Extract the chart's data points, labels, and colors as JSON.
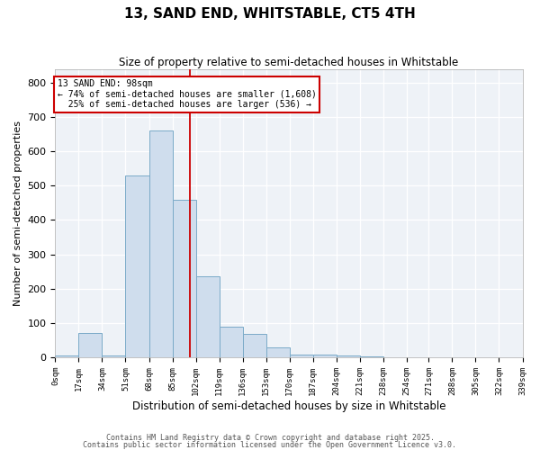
{
  "title": "13, SAND END, WHITSTABLE, CT5 4TH",
  "subtitle": "Size of property relative to semi-detached houses in Whitstable",
  "xlabel": "Distribution of semi-detached houses by size in Whitstable",
  "ylabel": "Number of semi-detached properties",
  "bar_edges": [
    0,
    17,
    34,
    51,
    68,
    85,
    102,
    119,
    136,
    153,
    170,
    187,
    204,
    221,
    238,
    255,
    271,
    288,
    305,
    322,
    339
  ],
  "bar_heights": [
    5,
    70,
    5,
    530,
    660,
    460,
    235,
    90,
    68,
    30,
    8,
    8,
    5,
    3,
    0,
    0,
    0,
    0,
    0,
    0
  ],
  "bar_color": "#cfdded",
  "bar_edge_color": "#7aaac8",
  "property_size": 98,
  "red_line_color": "#cc0000",
  "annotation_line1": "13 SAND END: 98sqm",
  "annotation_line2": "← 74% of semi-detached houses are smaller (1,608)",
  "annotation_line3": "  25% of semi-detached houses are larger (536) →",
  "annotation_box_color": "#ffffff",
  "annotation_box_edge_color": "#cc0000",
  "ylim": [
    0,
    840
  ],
  "background_color": "#eef2f7",
  "grid_color": "#ffffff",
  "footer_line1": "Contains HM Land Registry data © Crown copyright and database right 2025.",
  "footer_line2": "Contains public sector information licensed under the Open Government Licence v3.0.",
  "tick_labels": [
    "0sqm",
    "17sqm",
    "34sqm",
    "51sqm",
    "68sqm",
    "85sqm",
    "102sqm",
    "119sqm",
    "136sqm",
    "153sqm",
    "170sqm",
    "187sqm",
    "204sqm",
    "221sqm",
    "238sqm",
    "254sqm",
    "271sqm",
    "288sqm",
    "305sqm",
    "322sqm",
    "339sqm"
  ]
}
